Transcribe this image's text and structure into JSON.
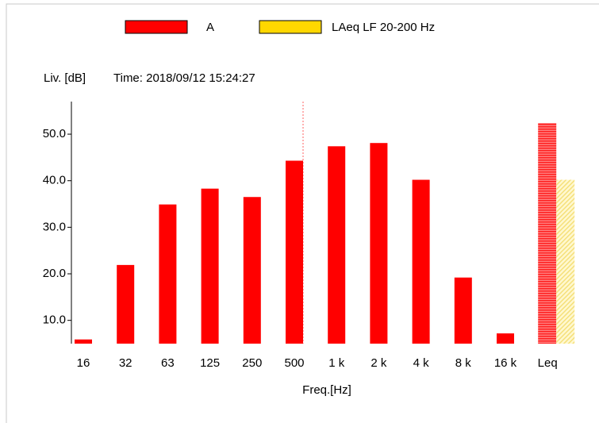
{
  "chart_data": {
    "type": "bar",
    "legend": "top",
    "ylabel": "Liv. [dB]",
    "subtitle": "Time: 2018/09/12 15:24:27",
    "xlabel": "Freq.[Hz]",
    "categories": [
      "16",
      "32",
      "63",
      "125",
      "250",
      "500",
      "1 k",
      "2 k",
      "4 k",
      "8 k",
      "16 k",
      "Leq"
    ],
    "series": [
      {
        "name": "A",
        "color": "#ff0000",
        "values": [
          5.9,
          21.9,
          34.9,
          38.3,
          36.5,
          44.3,
          47.4,
          48.1,
          40.2,
          19.2,
          7.2,
          52.4
        ]
      },
      {
        "name": "LAeq LF 20-200 Hz",
        "color": "#ffd700",
        "values": [
          null,
          null,
          null,
          null,
          null,
          null,
          null,
          null,
          null,
          null,
          null,
          40.2
        ]
      }
    ],
    "ylim": [
      5,
      57
    ],
    "yticks": [
      {
        "value": 10,
        "label": "10.0"
      },
      {
        "value": 20,
        "label": "20.0"
      },
      {
        "value": 30,
        "label": "30.0"
      },
      {
        "value": 40,
        "label": "40.0"
      },
      {
        "value": 50,
        "label": "50.0"
      }
    ]
  }
}
